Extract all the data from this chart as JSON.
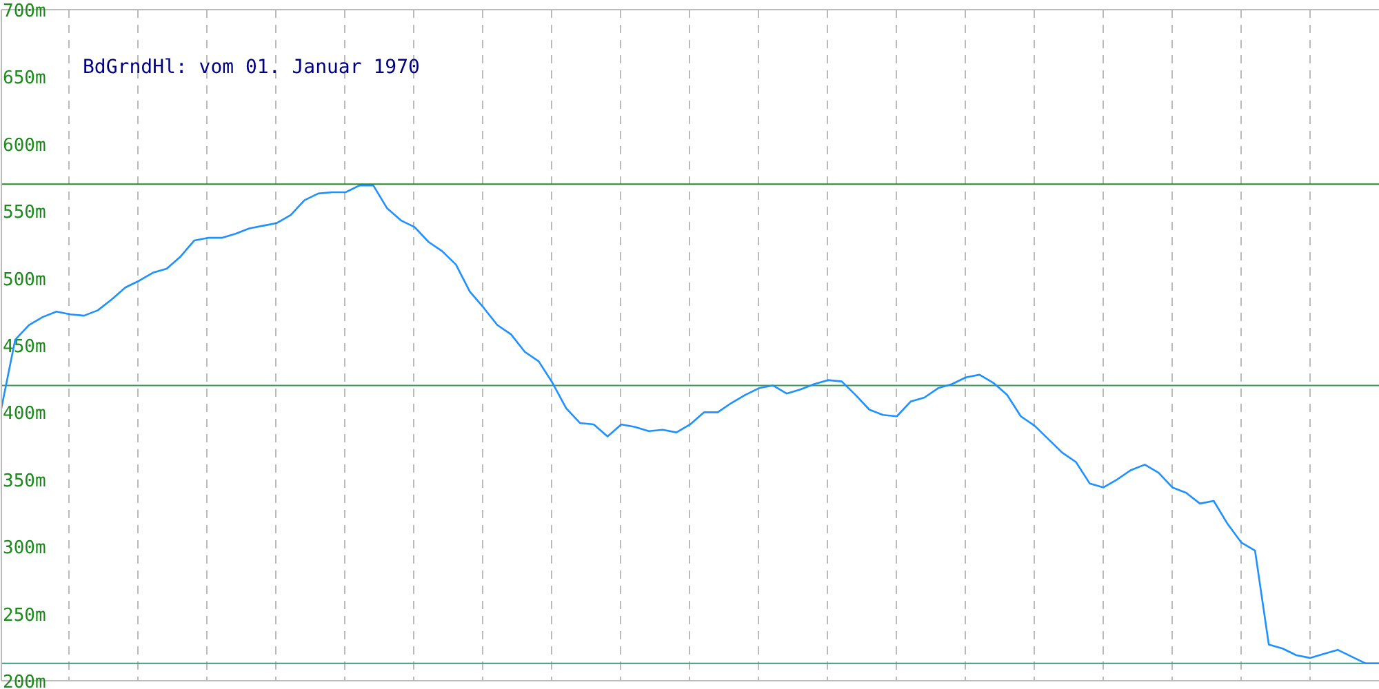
{
  "chart_data": {
    "type": "line",
    "title": "BdGrndHl: vom 01. Januar 1970",
    "categories": [
      null,
      null,
      null,
      null,
      null,
      null,
      null,
      null,
      null,
      null,
      null,
      null,
      null,
      null,
      null,
      null,
      null,
      null,
      null,
      null,
      null,
      null,
      null,
      null,
      null,
      null,
      null,
      null,
      null,
      null,
      null,
      null,
      null,
      null,
      null,
      null,
      null,
      null,
      null,
      null,
      null,
      null,
      null,
      null,
      null,
      null,
      null,
      null,
      null,
      null,
      null,
      null,
      null,
      null,
      null,
      null,
      null,
      null,
      null,
      null,
      null,
      null,
      null,
      null,
      null,
      null,
      null,
      null,
      null,
      null,
      null,
      null,
      null,
      null,
      null,
      null,
      null,
      null,
      null,
      null,
      null,
      null,
      null,
      null,
      null,
      null,
      null,
      null,
      null,
      null,
      null,
      null,
      null,
      null,
      null,
      null,
      null,
      null,
      null,
      null,
      null
    ],
    "series": [
      {
        "color": "#1e90ff",
        "values": [
          403,
          454,
          465,
          471,
          475,
          473,
          472,
          476,
          484,
          493,
          498,
          504,
          507,
          516,
          528,
          530,
          530,
          533,
          537,
          539,
          541,
          547,
          558,
          563,
          564,
          564,
          569,
          569,
          552,
          543,
          538,
          527,
          520,
          510,
          490,
          478,
          465,
          458,
          445,
          438,
          422,
          403,
          392,
          391,
          382,
          391,
          389,
          386,
          387,
          385,
          391,
          400,
          400,
          407,
          413,
          418,
          420,
          414,
          417,
          421,
          424,
          423,
          413,
          402,
          398,
          397,
          408,
          411,
          418,
          421,
          426,
          428,
          422,
          413,
          397,
          390,
          380,
          370,
          363,
          347,
          344,
          350,
          357,
          361,
          355,
          344,
          340,
          332,
          334,
          317,
          303,
          297,
          227,
          224,
          219,
          217,
          220,
          223,
          218,
          213,
          213
        ]
      }
    ],
    "ylim": [
      200,
      700
    ],
    "yticks": [
      {
        "value": 200,
        "label": "200m"
      },
      {
        "value": 250,
        "label": "250m"
      },
      {
        "value": 300,
        "label": "300m"
      },
      {
        "value": 350,
        "label": "350m"
      },
      {
        "value": 400,
        "label": "400m"
      },
      {
        "value": 450,
        "label": "450m"
      },
      {
        "value": 500,
        "label": "500m"
      },
      {
        "value": 550,
        "label": "550m"
      },
      {
        "value": 600,
        "label": "600m"
      },
      {
        "value": 650,
        "label": "650m"
      },
      {
        "value": 700,
        "label": "700m"
      }
    ],
    "ref_lines": [
      {
        "axis": "y",
        "value": 570,
        "color": "#228b22"
      },
      {
        "axis": "y",
        "value": 420,
        "color": "#3c9a5a"
      },
      {
        "axis": "y",
        "value": 213,
        "color": "#3c9a7a"
      }
    ],
    "grid": true,
    "marker": "none",
    "line_style": "solid",
    "tick_labels": "y"
  }
}
